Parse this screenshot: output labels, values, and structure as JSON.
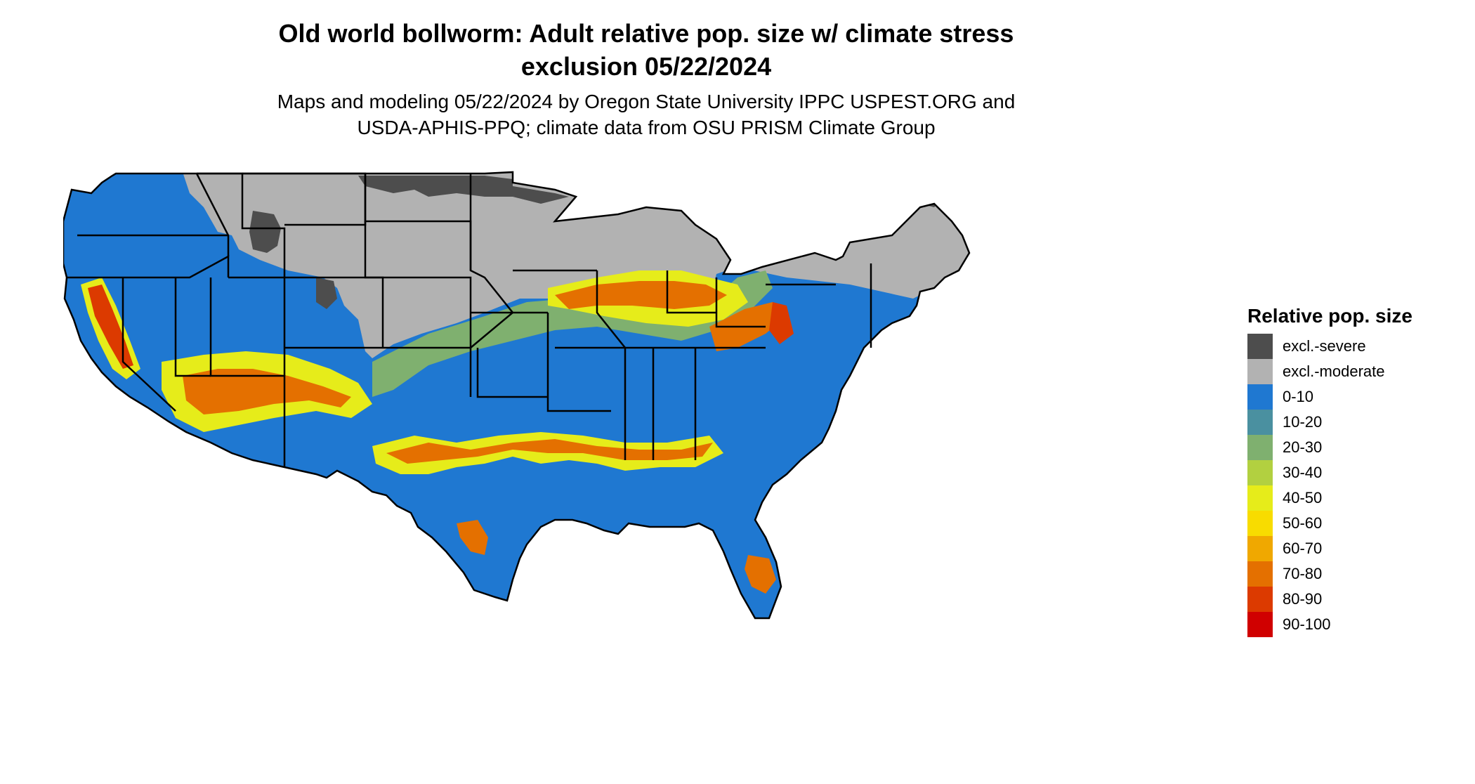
{
  "title": {
    "line1": "Old world bollworm: Adult relative pop. size w/ climate stress",
    "line2": "exclusion 05/22/2024"
  },
  "subtitle": {
    "line1": "Maps and modeling 05/22/2024 by Oregon State University IPPC USPEST.ORG and",
    "line2": "USDA-APHIS-PPQ; climate data from OSU PRISM Climate Group"
  },
  "map": {
    "region": "conterminous-united-states",
    "style": "state-boundaries"
  },
  "legend": {
    "title": "Relative pop. size",
    "items": [
      {
        "label": "excl.-severe",
        "color": "#4d4d4d"
      },
      {
        "label": "excl.-moderate",
        "color": "#b2b2b2"
      },
      {
        "label": "0-10",
        "color": "#1f78d1"
      },
      {
        "label": "10-20",
        "color": "#4a90a0"
      },
      {
        "label": "20-30",
        "color": "#7fb06f"
      },
      {
        "label": "30-40",
        "color": "#b2d040"
      },
      {
        "label": "40-50",
        "color": "#e6ec1a"
      },
      {
        "label": "50-60",
        "color": "#f8dc00"
      },
      {
        "label": "60-70",
        "color": "#f0a800"
      },
      {
        "label": "70-80",
        "color": "#e47000"
      },
      {
        "label": "80-90",
        "color": "#dc3a00"
      },
      {
        "label": "90-100",
        "color": "#d00000"
      }
    ]
  }
}
